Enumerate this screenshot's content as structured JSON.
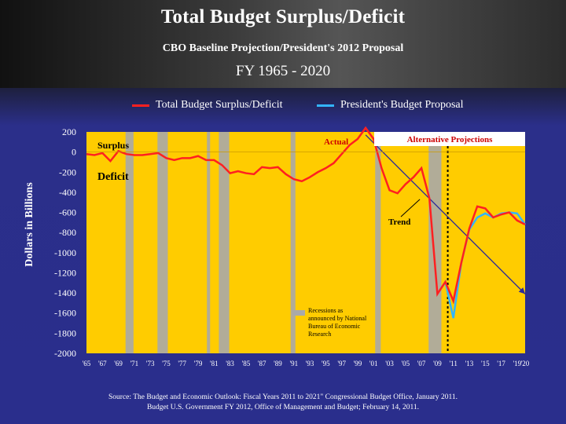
{
  "header": {
    "title": "Total Budget Surplus/Deficit",
    "subtitle": "CBO Baseline Projection/President's 2012 Proposal",
    "range": "FY 1965 - 2020"
  },
  "legend": [
    {
      "label": "Total Budget Surplus/Deficit",
      "color": "#ff2020"
    },
    {
      "label": "President's Budget Proposal",
      "color": "#33b5ff"
    }
  ],
  "source": {
    "line1": "Source: The Budget and Economic Outlook: Fiscal Years 2011 to 2021\" Congressional Budget Office, January 2011.",
    "line2": "Budget U.S. Government FY 2012, Office of Management and Budget; February 14, 2011."
  },
  "chart_data": {
    "type": "line",
    "ylabel": "Dollars in Billions",
    "ylim": [
      -2000,
      200
    ],
    "xlim": [
      1965,
      2020
    ],
    "yticks": [
      200,
      0,
      -200,
      -400,
      -600,
      -800,
      -1000,
      -1200,
      -1400,
      -1600,
      -1800,
      -2000
    ],
    "xtick_labels": [
      "'65",
      "'67",
      "'69",
      "'71",
      "'73",
      "'75",
      "'77",
      "'79",
      "'81",
      "'83",
      "'85",
      "'87",
      "'89",
      "'91",
      "'93",
      "'95",
      "'97",
      "'99",
      "'01",
      "'03",
      "'05",
      "'07",
      "'09",
      "'11",
      "'13",
      "'15",
      "'17",
      "'19",
      "'20"
    ],
    "colors": {
      "plot_bg": "#ffcc00",
      "recession": "#a9a9a9",
      "text_red": "#cc0000"
    },
    "annotations": {
      "surplus": "Surplus",
      "deficit": "Deficit",
      "actual": "Actual",
      "alternative": "Alternative Projections",
      "trend": "Trend",
      "recession_note": "Recessions as announced by National Bureau of Economic Research"
    },
    "recessions": [
      [
        1969.9,
        1970.9
      ],
      [
        1973.9,
        1975.2
      ],
      [
        1980.1,
        1980.5
      ],
      [
        1981.6,
        1982.9
      ],
      [
        1990.6,
        1991.2
      ],
      [
        2001.2,
        2001.9
      ],
      [
        2007.9,
        2009.5
      ]
    ],
    "series": [
      {
        "name": "Total Budget Surplus/Deficit",
        "x": [
          1965,
          1966,
          1967,
          1968,
          1969,
          1970,
          1971,
          1972,
          1973,
          1974,
          1975,
          1976,
          1977,
          1978,
          1979,
          1980,
          1981,
          1982,
          1983,
          1984,
          1985,
          1986,
          1987,
          1988,
          1989,
          1990,
          1991,
          1992,
          1993,
          1994,
          1995,
          1996,
          1997,
          1998,
          1999,
          2000,
          2001,
          2002,
          2003,
          2004,
          2005,
          2006,
          2007,
          2008,
          2009,
          2010,
          2011,
          2012,
          2013,
          2014,
          2015,
          2016,
          2017,
          2018,
          2019,
          2020
        ],
        "values": [
          -20,
          -30,
          -10,
          -90,
          10,
          -20,
          -30,
          -30,
          -20,
          -10,
          -60,
          -80,
          -60,
          -60,
          -40,
          -80,
          -80,
          -130,
          -210,
          -190,
          -210,
          -220,
          -150,
          -160,
          -150,
          -220,
          -270,
          -290,
          -250,
          -200,
          -160,
          -110,
          -20,
          70,
          130,
          240,
          130,
          -160,
          -380,
          -410,
          -320,
          -250,
          -160,
          -460,
          -1410,
          -1290,
          -1480,
          -1100,
          -760,
          -540,
          -560,
          -650,
          -620,
          -600,
          -680,
          -720
        ]
      },
      {
        "name": "President's Budget Proposal",
        "x": [
          2009,
          2010,
          2011,
          2012,
          2013,
          2014,
          2015,
          2016,
          2017,
          2018,
          2019,
          2020
        ],
        "values": [
          -1410,
          -1290,
          -1650,
          -1100,
          -770,
          -650,
          -610,
          -650,
          -610,
          -600,
          -610,
          -720
        ]
      },
      {
        "name": "Trend",
        "x": [
          2000,
          2020
        ],
        "values": [
          170,
          -1410
        ]
      }
    ]
  }
}
